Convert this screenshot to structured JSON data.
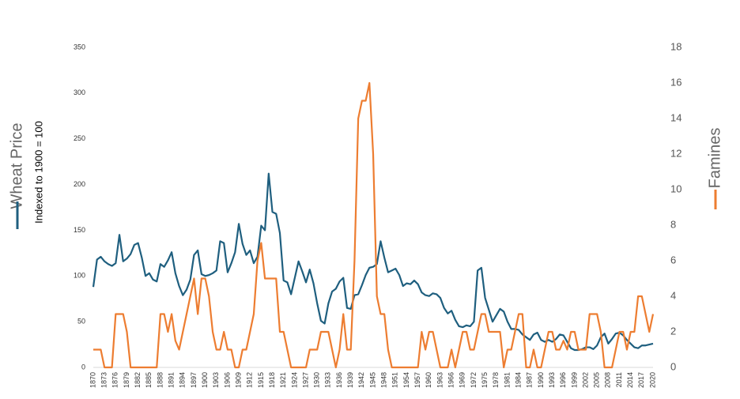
{
  "chart_data": {
    "type": "line",
    "y_label": "Wheat Price",
    "y_sublabel": "Indexed to 1900 = 100",
    "y2_label": "Famines",
    "x": [
      1870,
      1871,
      1872,
      1873,
      1874,
      1875,
      1876,
      1877,
      1878,
      1879,
      1880,
      1881,
      1882,
      1883,
      1884,
      1885,
      1886,
      1887,
      1888,
      1889,
      1890,
      1891,
      1892,
      1893,
      1894,
      1895,
      1896,
      1897,
      1898,
      1899,
      1900,
      1901,
      1902,
      1903,
      1904,
      1905,
      1906,
      1907,
      1908,
      1909,
      1910,
      1911,
      1912,
      1913,
      1914,
      1915,
      1916,
      1917,
      1918,
      1919,
      1920,
      1921,
      1922,
      1923,
      1924,
      1925,
      1926,
      1927,
      1928,
      1929,
      1930,
      1931,
      1932,
      1933,
      1934,
      1935,
      1936,
      1937,
      1938,
      1939,
      1940,
      1941,
      1942,
      1943,
      1944,
      1945,
      1946,
      1947,
      1948,
      1949,
      1950,
      1951,
      1952,
      1953,
      1954,
      1955,
      1956,
      1957,
      1958,
      1959,
      1960,
      1961,
      1962,
      1963,
      1964,
      1965,
      1966,
      1967,
      1968,
      1969,
      1970,
      1971,
      1972,
      1973,
      1974,
      1975,
      1976,
      1977,
      1978,
      1979,
      1980,
      1981,
      1982,
      1983,
      1984,
      1985,
      1986,
      1987,
      1988,
      1989,
      1990,
      1991,
      1992,
      1993,
      1994,
      1995,
      1996,
      1997,
      1998,
      1999,
      2000,
      2001,
      2002,
      2003,
      2004,
      2005,
      2006,
      2007,
      2008,
      2009,
      2010,
      2011,
      2012,
      2013,
      2014,
      2015,
      2016,
      2017,
      2018,
      2019,
      2020
    ],
    "xlim": [
      1870,
      2020
    ],
    "xticks": [
      1870,
      1873,
      1876,
      1879,
      1882,
      1885,
      1888,
      1891,
      1894,
      1897,
      1900,
      1903,
      1906,
      1909,
      1912,
      1915,
      1918,
      1921,
      1924,
      1927,
      1930,
      1933,
      1936,
      1939,
      1942,
      1945,
      1948,
      1951,
      1954,
      1957,
      1960,
      1963,
      1966,
      1969,
      1972,
      1975,
      1978,
      1981,
      1984,
      1987,
      1990,
      1993,
      1996,
      1999,
      2002,
      2005,
      2008,
      2011,
      2014,
      2017,
      2020
    ],
    "ylim": [
      0,
      350
    ],
    "yticks": [
      0,
      50,
      100,
      150,
      200,
      250,
      300,
      350
    ],
    "y2lim": [
      0,
      18
    ],
    "y2ticks": [
      0,
      2,
      4,
      6,
      8,
      10,
      12,
      14,
      16,
      18
    ],
    "series": [
      {
        "name": "Wheat Price",
        "color": "#1f5f7f",
        "values": [
          88,
          118,
          121,
          116,
          113,
          111,
          114,
          145,
          116,
          119,
          124,
          134,
          136,
          120,
          100,
          103,
          96,
          94,
          113,
          110,
          117,
          126,
          103,
          89,
          79,
          85,
          96,
          123,
          128,
          102,
          100,
          101,
          103,
          106,
          138,
          136,
          104,
          114,
          126,
          157,
          135,
          123,
          128,
          114,
          121,
          155,
          150,
          212,
          170,
          168,
          147,
          95,
          93,
          80,
          98,
          116,
          105,
          93,
          107,
          92,
          70,
          51,
          48,
          70,
          83,
          86,
          94,
          98,
          65,
          64,
          79,
          80,
          90,
          101,
          109,
          110,
          113,
          138,
          120,
          104,
          106,
          108,
          101,
          89,
          92,
          91,
          95,
          91,
          82,
          79,
          78,
          81,
          80,
          76,
          65,
          59,
          62,
          52,
          45,
          44,
          46,
          45,
          50,
          106,
          109,
          76,
          63,
          50,
          57,
          64,
          61,
          50,
          42,
          42,
          41,
          36,
          33,
          30,
          36,
          38,
          30,
          28,
          30,
          28,
          31,
          36,
          35,
          28,
          21,
          19,
          19,
          20,
          22,
          22,
          20,
          24,
          33,
          37,
          26,
          31,
          37,
          38,
          35,
          30,
          26,
          22,
          21,
          24,
          24,
          25,
          26
        ]
      },
      {
        "name": "Famines",
        "color": "#ed7d31",
        "axis": "y2",
        "values": [
          1,
          1,
          1,
          0,
          0,
          0,
          3,
          3,
          3,
          2,
          0,
          0,
          0,
          0,
          0,
          0,
          0,
          0,
          3,
          3,
          2,
          3,
          1.5,
          1,
          2,
          3,
          4,
          5,
          3,
          5,
          5,
          4,
          2,
          1,
          1,
          2,
          1,
          1,
          0,
          0,
          1,
          1,
          2,
          3,
          6,
          7,
          5,
          5,
          5,
          5,
          2,
          2,
          1,
          0,
          0,
          0,
          0,
          0,
          1,
          1,
          1,
          2,
          2,
          2,
          1,
          0,
          1,
          3,
          1,
          1,
          6,
          14,
          15,
          15,
          16,
          12,
          4,
          3,
          3,
          1,
          0,
          0,
          0,
          0,
          0,
          0,
          0,
          0,
          2,
          1,
          2,
          2,
          1,
          0,
          0,
          0,
          1,
          0,
          1,
          2,
          2,
          1,
          1,
          2,
          3,
          3,
          2,
          2,
          2,
          2,
          0,
          1,
          1,
          2,
          3,
          3,
          0,
          0,
          1,
          0,
          0,
          1,
          2,
          2,
          1,
          1,
          1.5,
          1,
          2,
          2,
          1,
          1,
          1,
          3,
          3,
          3,
          2,
          0,
          0,
          0,
          1,
          2,
          2,
          1,
          2,
          2,
          4,
          4,
          3,
          2,
          3
        ]
      }
    ]
  }
}
